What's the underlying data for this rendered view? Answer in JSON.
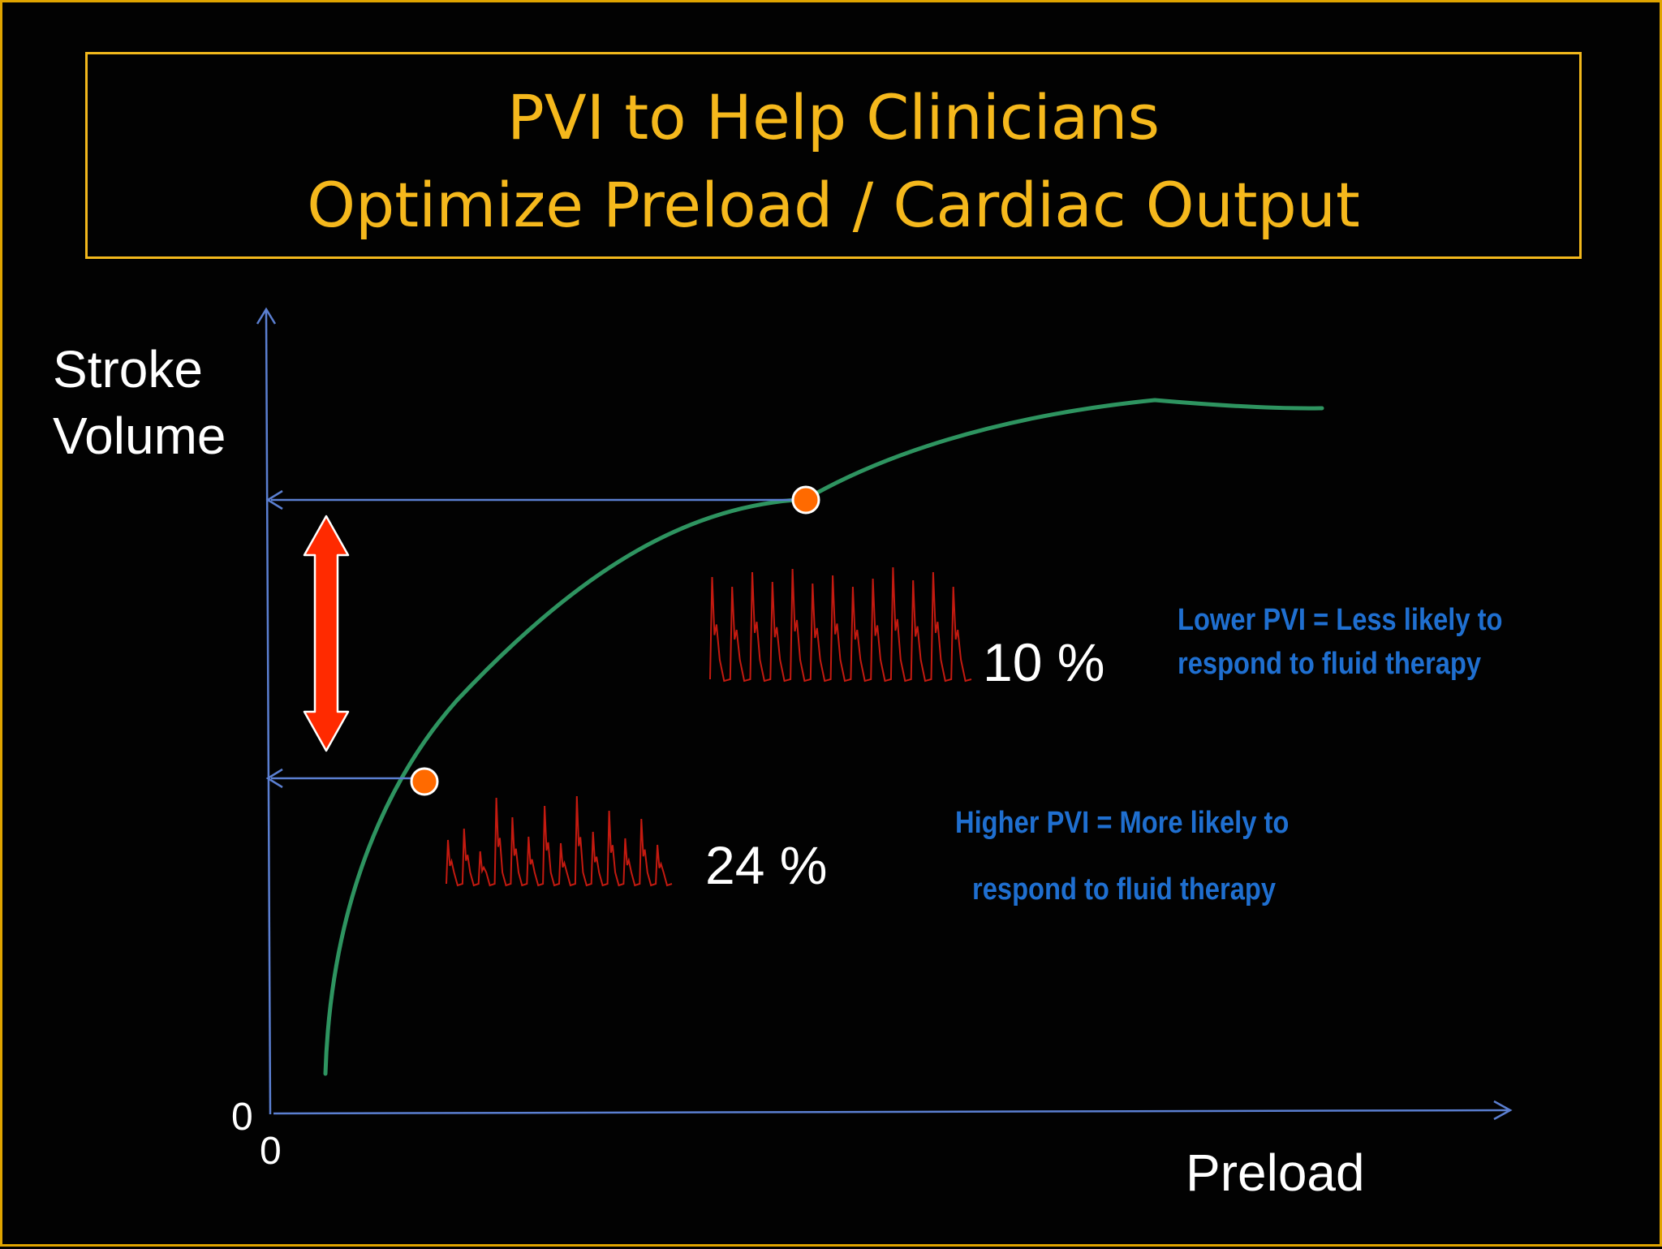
{
  "title": {
    "line1": "PVI to Help Clinicians",
    "line2": "Optimize Preload / Cardiac Output"
  },
  "axes": {
    "y_label_line1": "Stroke",
    "y_label_line2": "Volume",
    "x_label": "Preload",
    "y_origin": "0",
    "x_origin": "0"
  },
  "points": {
    "high": {
      "pvi": "10 %"
    },
    "low": {
      "pvi": "24 %"
    }
  },
  "notes": {
    "lower_line1": "Lower PVI = Less likely to",
    "lower_line2": "respond  to fluid therapy",
    "higher_line1": "Higher PVI = More likely to",
    "higher_line2": "respond to fluid  therapy"
  },
  "colors": {
    "title": "#f5b81c",
    "axis": "#5b7fd1",
    "curve": "#2e9460",
    "marker": "#ff6a00",
    "double_arrow": "#ff2a00",
    "waveform": "#c41a10",
    "note_text": "#1f6fd0"
  },
  "icons": {
    "double_arrow": "double-headed-arrow-icon",
    "marker": "circle-marker-icon"
  }
}
